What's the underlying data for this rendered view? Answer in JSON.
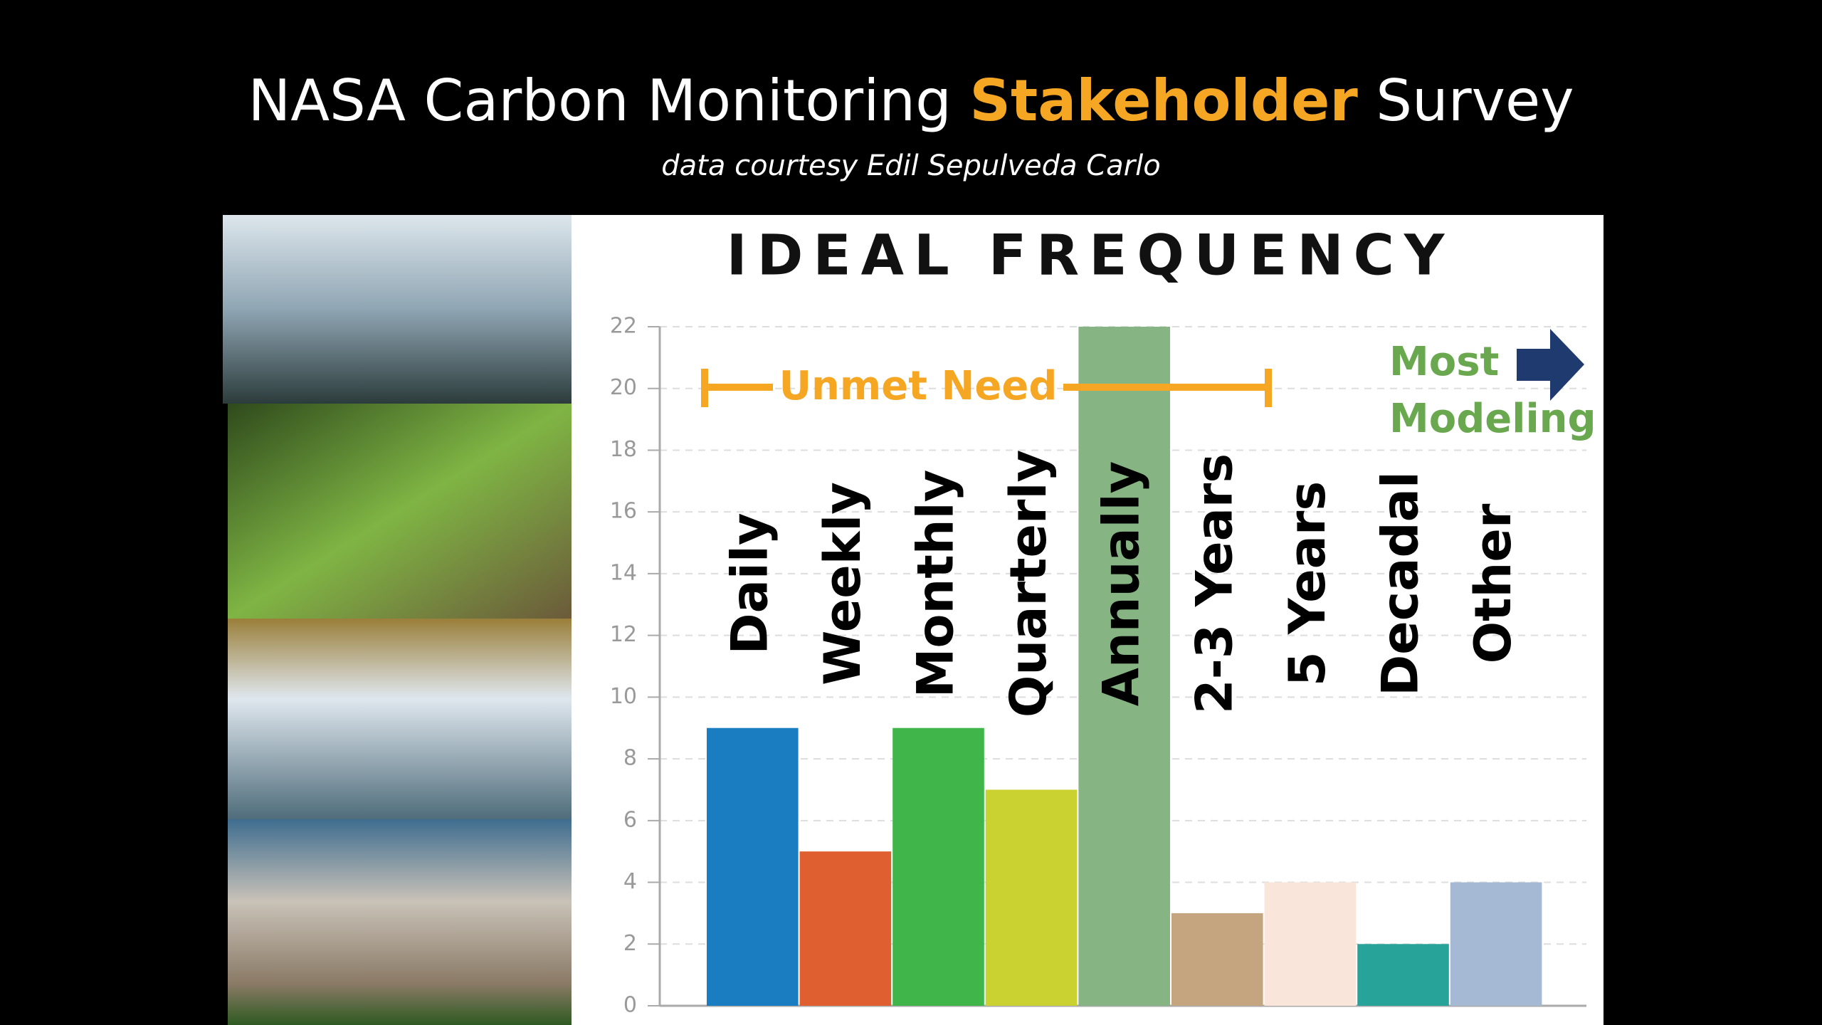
{
  "slide": {
    "title_parts": [
      "NASA Carbon Monitoring",
      "Stakeholder",
      "Survey"
    ],
    "subtitle": "data courtesy Edil Sepulveda Carlo"
  },
  "chart_data": {
    "type": "bar",
    "title": "IDEAL FREQUENCY",
    "categories": [
      "Daily",
      "Weekly",
      "Monthly",
      "Quarterly",
      "Annually",
      "2-3 Years",
      "5 Years",
      "Decadal",
      "Other"
    ],
    "values": [
      9,
      5,
      9,
      7,
      22,
      3,
      4,
      2,
      4
    ],
    "colors": [
      "#1a7cc1",
      "#e05f30",
      "#3fb54a",
      "#c9d230",
      "#86b483",
      "#c4a57f",
      "#fae5da",
      "#27a39a",
      "#a5b9d5"
    ],
    "ylim": [
      0,
      22
    ],
    "yticks": [
      0,
      2,
      4,
      6,
      8,
      10,
      12,
      14,
      16,
      18,
      20,
      22
    ],
    "grid": true,
    "annotations": {
      "unmet_need": "Unmet Need",
      "most_modeling": [
        "Most",
        "Modeling"
      ]
    }
  }
}
